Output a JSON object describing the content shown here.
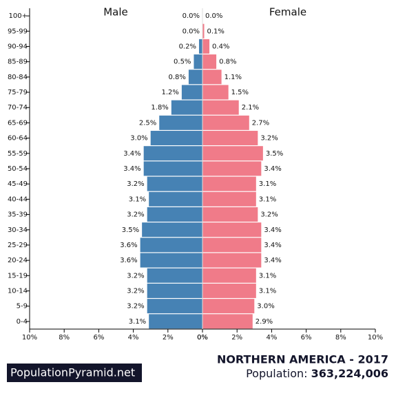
{
  "chart_data": {
    "type": "pyramid",
    "title": "NORTHERN AMERICA - 2017",
    "categories": [
      "100+",
      "95-99",
      "90-94",
      "85-89",
      "80-84",
      "75-79",
      "70-74",
      "65-69",
      "60-64",
      "55-59",
      "50-54",
      "45-49",
      "40-44",
      "35-39",
      "30-34",
      "25-29",
      "20-24",
      "15-19",
      "10-14",
      "5-9",
      "0-4"
    ],
    "series": [
      {
        "name": "Male",
        "color": "#4682b4",
        "values": [
          0.0,
          0.0,
          0.2,
          0.5,
          0.8,
          1.2,
          1.8,
          2.5,
          3.0,
          3.4,
          3.4,
          3.2,
          3.1,
          3.2,
          3.5,
          3.6,
          3.6,
          3.2,
          3.2,
          3.2,
          3.1
        ],
        "value_labels": [
          "0.0%",
          "0.0%",
          "0.2%",
          "0.5%",
          "0.8%",
          "1.2%",
          "1.8%",
          "2.5%",
          "3.0%",
          "3.4%",
          "3.4%",
          "3.2%",
          "3.1%",
          "3.2%",
          "3.5%",
          "3.6%",
          "3.6%",
          "3.2%",
          "3.2%",
          "3.2%",
          "3.1%"
        ]
      },
      {
        "name": "Female",
        "color": "#f07b89",
        "values": [
          0.0,
          0.1,
          0.4,
          0.8,
          1.1,
          1.5,
          2.1,
          2.7,
          3.2,
          3.5,
          3.4,
          3.1,
          3.1,
          3.2,
          3.4,
          3.4,
          3.4,
          3.1,
          3.1,
          3.0,
          2.9
        ],
        "value_labels": [
          "0.0%",
          "0.1%",
          "0.4%",
          "0.8%",
          "1.1%",
          "1.5%",
          "2.1%",
          "2.7%",
          "3.2%",
          "3.5%",
          "3.4%",
          "3.1%",
          "3.1%",
          "3.2%",
          "3.4%",
          "3.4%",
          "3.4%",
          "3.1%",
          "3.1%",
          "3.0%",
          "2.9%"
        ]
      }
    ],
    "xlim": [
      0,
      10
    ],
    "xticks": [
      {
        "value": 0,
        "label": "0%"
      },
      {
        "value": 2,
        "label": "2%"
      },
      {
        "value": 4,
        "label": "4%"
      },
      {
        "value": 6,
        "label": "6%"
      },
      {
        "value": 8,
        "label": "8%"
      },
      {
        "value": 10,
        "label": "10%"
      }
    ]
  },
  "footer": {
    "brand": "PopulationPyramid.net",
    "population_label": "Population:",
    "population": "363,224,006"
  }
}
